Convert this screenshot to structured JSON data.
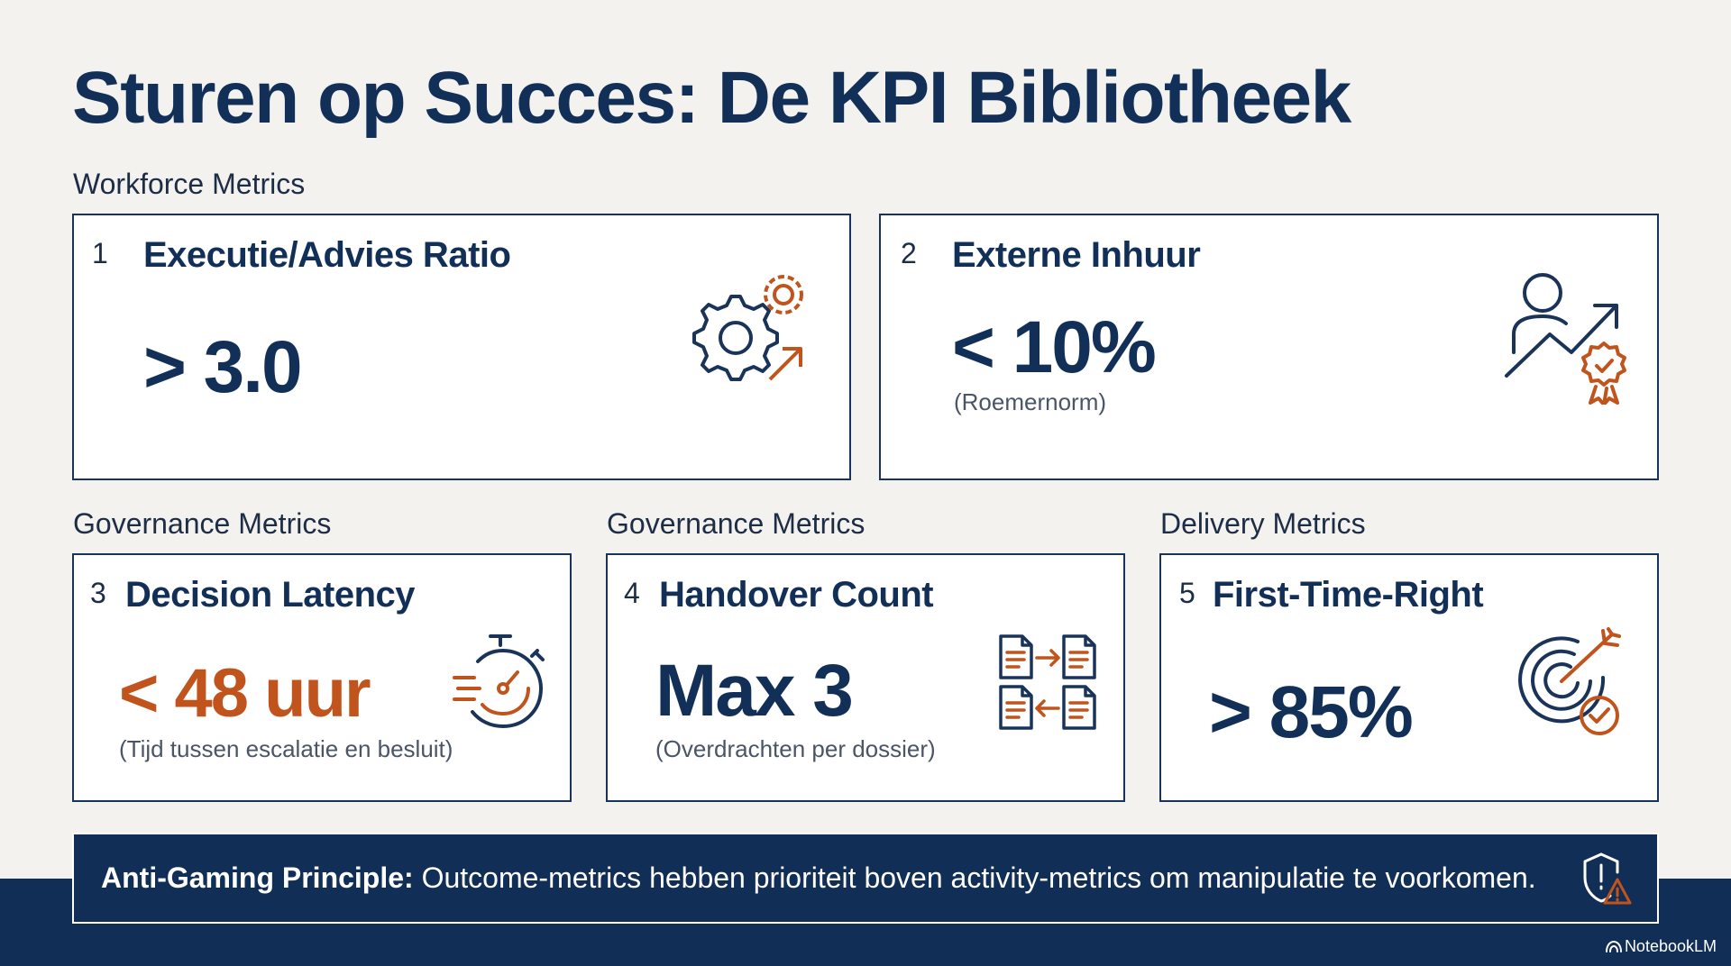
{
  "title": "Sturen op Succes: De KPI Bibliotheek",
  "sections": {
    "workforce": "Workforce Metrics",
    "governance_1": "Governance Metrics",
    "governance_2": "Governance Metrics",
    "delivery": "Delivery Metrics"
  },
  "cards": [
    {
      "number": "1",
      "title": "Executie/Advies Ratio",
      "value": "> 3.0",
      "note": "",
      "icon": "gears-growth-icon"
    },
    {
      "number": "2",
      "title": "Externe Inhuur",
      "value": "< 10%",
      "note": "(Roemernorm)",
      "icon": "person-trend-award-icon"
    },
    {
      "number": "3",
      "title": "Decision Latency",
      "value": "< 48 uur",
      "note": "(Tijd tussen escalatie en besluit)",
      "icon": "stopwatch-icon"
    },
    {
      "number": "4",
      "title": "Handover Count",
      "value": "Max 3",
      "note": "(Overdrachten per dossier)",
      "icon": "document-handover-icon"
    },
    {
      "number": "5",
      "title": "First-Time-Right",
      "value": "> 85%",
      "note": "",
      "icon": "target-check-icon"
    }
  ],
  "banner": {
    "label": "Anti-Gaming Principle:",
    "text": " Outcome-metrics hebben prioriteit boven activity-metrics om manipulatie te voorkomen.",
    "icon": "shield-warning-icon"
  },
  "footer": {
    "brand": "NotebookLM",
    "icon": "notebooklm-logo-icon"
  },
  "colors": {
    "navy": "#122f58",
    "accent": "#c0541c",
    "background": "#f3f2ee"
  }
}
